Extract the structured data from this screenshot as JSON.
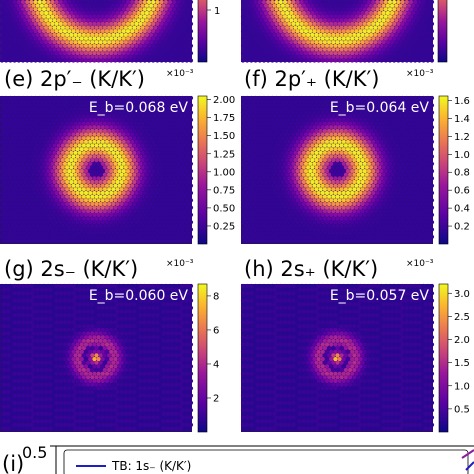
{
  "figure": {
    "panels": [
      {
        "id": "top-left-partial",
        "label": "",
        "eb": "",
        "multiplier": "",
        "ticks": [
          "1"
        ],
        "vmax": 1.6,
        "profile": "ring",
        "partial": true
      },
      {
        "id": "top-right-partial",
        "label": "",
        "eb": "",
        "multiplier": "",
        "ticks": [],
        "vmax": 1.6,
        "profile": "ring",
        "partial": true
      },
      {
        "id": "e",
        "label": "(e) 2p′₋  (K/K′)",
        "eb": "E_b=0.068 eV",
        "multiplier": "×10⁻³",
        "ticks": [
          "2.00",
          "1.75",
          "1.50",
          "1.25",
          "1.00",
          "0.75",
          "0.50",
          "0.25"
        ],
        "vmax": 2.05,
        "profile": "ring"
      },
      {
        "id": "f",
        "label": "(f) 2p′₊  (K/K′)",
        "eb": "E_b=0.064 eV",
        "multiplier": "×10⁻³",
        "ticks": [
          "1.6",
          "1.4",
          "1.2",
          "1.0",
          "0.8",
          "0.6",
          "0.4",
          "0.2"
        ],
        "vmax": 1.65,
        "profile": "ring"
      },
      {
        "id": "g",
        "label": "(g) 2s₋  (K/K′)",
        "eb": "E_b=0.060 eV",
        "multiplier": "×10⁻³",
        "ticks": [
          "8",
          "6",
          "4",
          "2"
        ],
        "vmax": 8.7,
        "profile": "s"
      },
      {
        "id": "h",
        "label": "(h) 2s₊  (K/K′)",
        "eb": "E_b=0.057 eV",
        "multiplier": "×10⁻³",
        "ticks": [
          "3.0",
          "2.5",
          "2.0",
          "1.5",
          "1.0",
          "0.5"
        ],
        "vmax": 3.2,
        "profile": "s"
      }
    ],
    "bottom_panel": {
      "label": "(i)",
      "ytick": "0.5",
      "legend": "TB: 1s₋  (K/K′)"
    }
  }
}
